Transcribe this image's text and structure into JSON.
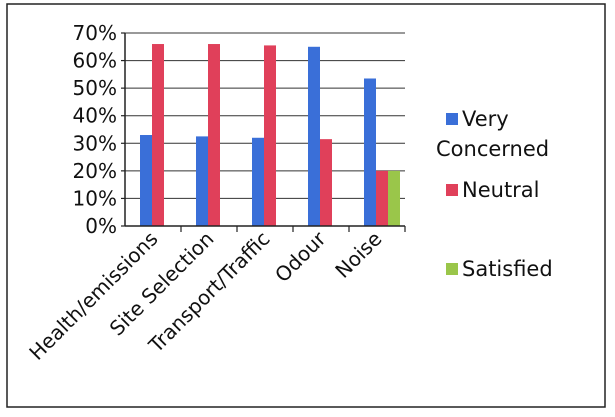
{
  "chart_data": {
    "type": "bar",
    "categories": [
      "Health/emissions",
      "Site Selection",
      "Transport/Traffic",
      "Odour",
      "Noise"
    ],
    "series": [
      {
        "name": "Very Concerned",
        "color": "#3a6fd8",
        "values": [
          0.33,
          0.325,
          0.32,
          0.65,
          0.535
        ]
      },
      {
        "name": "Neutral",
        "color": "#e0405a",
        "values": [
          0.66,
          0.66,
          0.655,
          0.315,
          0.2
        ]
      },
      {
        "name": "Satisfied",
        "color": "#9ac64a",
        "values": [
          null,
          null,
          null,
          null,
          0.2
        ]
      }
    ],
    "yticks": [
      "0%",
      "10%",
      "20%",
      "30%",
      "40%",
      "50%",
      "60%",
      "70%"
    ],
    "ylim": [
      0,
      0.7
    ],
    "grid": true,
    "legend": "right",
    "title": "",
    "xlabel": "",
    "ylabel": ""
  }
}
